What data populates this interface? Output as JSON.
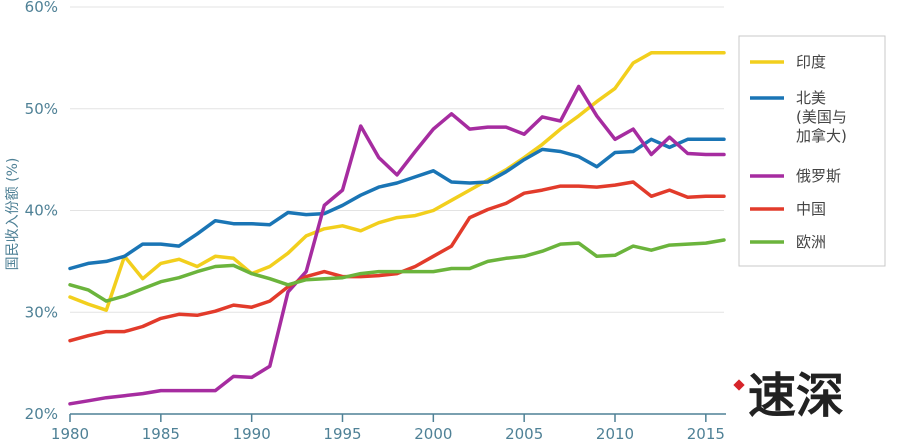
{
  "chart_data": {
    "type": "line",
    "title": "",
    "xlabel": "",
    "ylabel": "国民收入份额 (%)",
    "xlim": [
      1980,
      2016
    ],
    "ylim": [
      20,
      60
    ],
    "xticks": [
      1980,
      1985,
      1990,
      1995,
      2000,
      2005,
      2010,
      2015
    ],
    "yticks": [
      20,
      30,
      40,
      50,
      60
    ],
    "ytick_labels": [
      "20%",
      "30%",
      "40%",
      "50%",
      "60%"
    ],
    "grid": true,
    "legend_position": "right",
    "series": [
      {
        "name": "印度",
        "color": "#f2cf1d",
        "points": [
          [
            1980,
            31.5
          ],
          [
            1981,
            30.8
          ],
          [
            1982,
            30.2
          ],
          [
            1983,
            35.5
          ],
          [
            1984,
            33.3
          ],
          [
            1985,
            34.8
          ],
          [
            1986,
            35.2
          ],
          [
            1987,
            34.5
          ],
          [
            1988,
            35.5
          ],
          [
            1989,
            35.3
          ],
          [
            1990,
            33.8
          ],
          [
            1991,
            34.5
          ],
          [
            1992,
            35.8
          ],
          [
            1993,
            37.5
          ],
          [
            1994,
            38.2
          ],
          [
            1995,
            38.5
          ],
          [
            1996,
            38
          ],
          [
            1997,
            38.8
          ],
          [
            1998,
            39.3
          ],
          [
            1999,
            39.5
          ],
          [
            2000,
            40
          ],
          [
            2001,
            41
          ],
          [
            2002,
            42
          ],
          [
            2003,
            43
          ],
          [
            2004,
            44
          ],
          [
            2005,
            45.2
          ],
          [
            2006,
            46.5
          ],
          [
            2007,
            48
          ],
          [
            2008,
            49.3
          ],
          [
            2009,
            50.7
          ],
          [
            2010,
            52
          ],
          [
            2011,
            54.5
          ],
          [
            2012,
            55.5
          ],
          [
            2013,
            55.5
          ],
          [
            2014,
            55.5
          ],
          [
            2015,
            55.5
          ],
          [
            2016,
            55.5
          ]
        ]
      },
      {
        "name": "北美",
        "name_line2": "(美国与",
        "name_line3": "加拿大)",
        "color": "#1a75b5",
        "points": [
          [
            1980,
            34.3
          ],
          [
            1981,
            34.8
          ],
          [
            1982,
            35
          ],
          [
            1983,
            35.5
          ],
          [
            1984,
            36.7
          ],
          [
            1985,
            36.7
          ],
          [
            1986,
            36.5
          ],
          [
            1987,
            37.7
          ],
          [
            1988,
            39
          ],
          [
            1989,
            38.7
          ],
          [
            1990,
            38.7
          ],
          [
            1991,
            38.6
          ],
          [
            1992,
            39.8
          ],
          [
            1993,
            39.6
          ],
          [
            1994,
            39.7
          ],
          [
            1995,
            40.5
          ],
          [
            1996,
            41.5
          ],
          [
            1997,
            42.3
          ],
          [
            1998,
            42.7
          ],
          [
            1999,
            43.3
          ],
          [
            2000,
            43.9
          ],
          [
            2001,
            42.8
          ],
          [
            2002,
            42.7
          ],
          [
            2003,
            42.8
          ],
          [
            2004,
            43.8
          ],
          [
            2005,
            45
          ],
          [
            2006,
            46
          ],
          [
            2007,
            45.8
          ],
          [
            2008,
            45.3
          ],
          [
            2009,
            44.3
          ],
          [
            2010,
            45.7
          ],
          [
            2011,
            45.8
          ],
          [
            2012,
            47
          ],
          [
            2013,
            46.2
          ],
          [
            2014,
            47
          ],
          [
            2015,
            47
          ],
          [
            2016,
            47
          ]
        ]
      },
      {
        "name": "俄罗斯",
        "color": "#a62ca0",
        "points": [
          [
            1980,
            21
          ],
          [
            1981,
            21.3
          ],
          [
            1982,
            21.6
          ],
          [
            1983,
            21.8
          ],
          [
            1984,
            22
          ],
          [
            1985,
            22.3
          ],
          [
            1986,
            22.3
          ],
          [
            1987,
            22.3
          ],
          [
            1988,
            22.3
          ],
          [
            1989,
            23.7
          ],
          [
            1990,
            23.6
          ],
          [
            1991,
            24.7
          ],
          [
            1992,
            32
          ],
          [
            1993,
            34
          ],
          [
            1994,
            40.5
          ],
          [
            1995,
            42
          ],
          [
            1996,
            48.3
          ],
          [
            1997,
            45.2
          ],
          [
            1998,
            43.5
          ],
          [
            1999,
            45.8
          ],
          [
            2000,
            48
          ],
          [
            2001,
            49.5
          ],
          [
            2002,
            48
          ],
          [
            2003,
            48.2
          ],
          [
            2004,
            48.2
          ],
          [
            2005,
            47.5
          ],
          [
            2006,
            49.2
          ],
          [
            2007,
            48.8
          ],
          [
            2008,
            52.2
          ],
          [
            2009,
            49.3
          ],
          [
            2010,
            47
          ],
          [
            2011,
            48
          ],
          [
            2012,
            45.5
          ],
          [
            2013,
            47.2
          ],
          [
            2014,
            45.6
          ],
          [
            2015,
            45.5
          ],
          [
            2016,
            45.5
          ]
        ]
      },
      {
        "name": "中国",
        "color": "#e23b2b",
        "points": [
          [
            1980,
            27.2
          ],
          [
            1981,
            27.7
          ],
          [
            1982,
            28.1
          ],
          [
            1983,
            28.1
          ],
          [
            1984,
            28.6
          ],
          [
            1985,
            29.4
          ],
          [
            1986,
            29.8
          ],
          [
            1987,
            29.7
          ],
          [
            1988,
            30.1
          ],
          [
            1989,
            30.7
          ],
          [
            1990,
            30.5
          ],
          [
            1991,
            31.1
          ],
          [
            1992,
            32.5
          ],
          [
            1993,
            33.5
          ],
          [
            1994,
            34
          ],
          [
            1995,
            33.5
          ],
          [
            1996,
            33.5
          ],
          [
            1997,
            33.6
          ],
          [
            1998,
            33.8
          ],
          [
            1999,
            34.5
          ],
          [
            2000,
            35.5
          ],
          [
            2001,
            36.5
          ],
          [
            2002,
            39.3
          ],
          [
            2003,
            40.1
          ],
          [
            2004,
            40.7
          ],
          [
            2005,
            41.7
          ],
          [
            2006,
            42
          ],
          [
            2007,
            42.4
          ],
          [
            2008,
            42.4
          ],
          [
            2009,
            42.3
          ],
          [
            2010,
            42.5
          ],
          [
            2011,
            42.8
          ],
          [
            2012,
            41.4
          ],
          [
            2013,
            42
          ],
          [
            2014,
            41.3
          ],
          [
            2015,
            41.4
          ],
          [
            2016,
            41.4
          ]
        ]
      },
      {
        "name": "欧洲",
        "color": "#6bb43c",
        "points": [
          [
            1980,
            32.7
          ],
          [
            1981,
            32.2
          ],
          [
            1982,
            31.1
          ],
          [
            1983,
            31.6
          ],
          [
            1984,
            32.3
          ],
          [
            1985,
            33
          ],
          [
            1986,
            33.4
          ],
          [
            1987,
            34
          ],
          [
            1988,
            34.5
          ],
          [
            1989,
            34.6
          ],
          [
            1990,
            33.8
          ],
          [
            1991,
            33.3
          ],
          [
            1992,
            32.7
          ],
          [
            1993,
            33.2
          ],
          [
            1994,
            33.3
          ],
          [
            1995,
            33.4
          ],
          [
            1996,
            33.8
          ],
          [
            1997,
            34
          ],
          [
            1998,
            34
          ],
          [
            1999,
            34
          ],
          [
            2000,
            34
          ],
          [
            2001,
            34.3
          ],
          [
            2002,
            34.3
          ],
          [
            2003,
            35
          ],
          [
            2004,
            35.3
          ],
          [
            2005,
            35.5
          ],
          [
            2006,
            36
          ],
          [
            2007,
            36.7
          ],
          [
            2008,
            36.8
          ],
          [
            2009,
            35.5
          ],
          [
            2010,
            35.6
          ],
          [
            2011,
            36.5
          ],
          [
            2012,
            36.1
          ],
          [
            2013,
            36.6
          ],
          [
            2014,
            36.7
          ],
          [
            2015,
            36.8
          ],
          [
            2016,
            37.1
          ]
        ]
      }
    ]
  },
  "watermark": {
    "text": "速深"
  }
}
